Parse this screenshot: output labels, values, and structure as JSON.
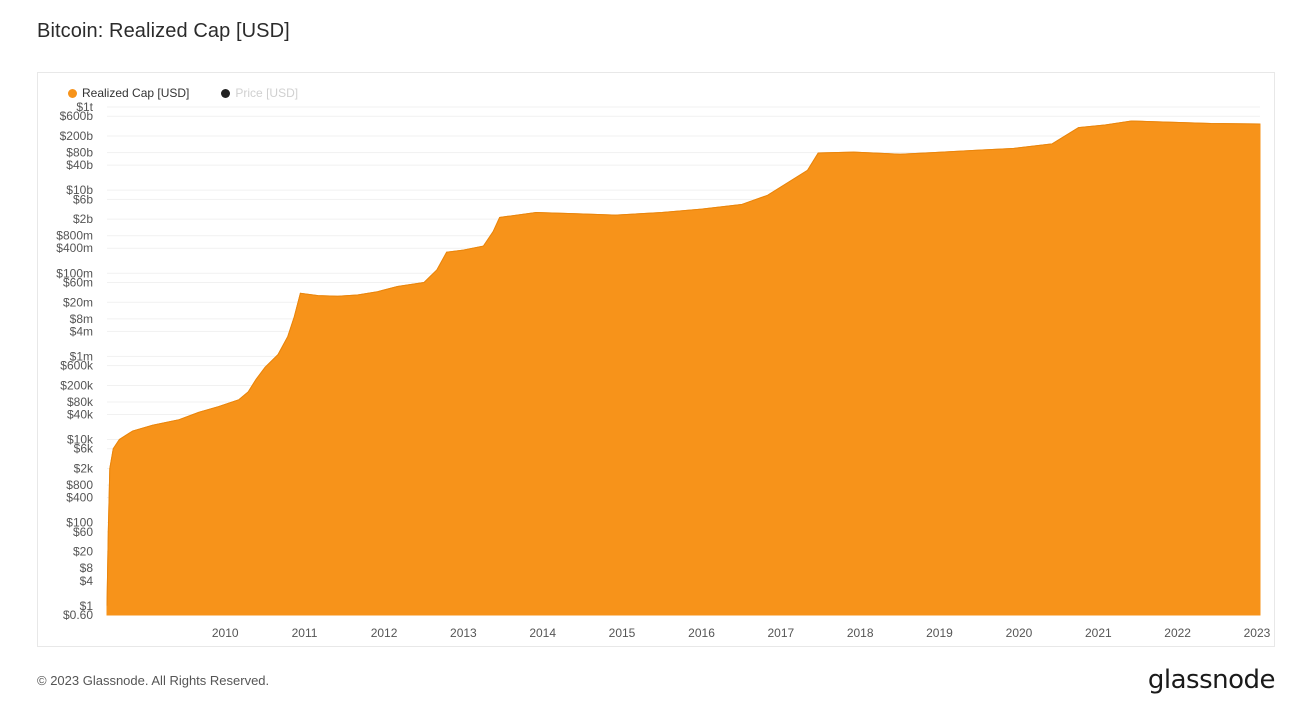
{
  "title": "Bitcoin: Realized Cap [USD]",
  "legend": [
    {
      "label": "Realized Cap [USD]",
      "color": "#F7931A",
      "active": true
    },
    {
      "label": "Price [USD]",
      "color": "#222222",
      "active": false
    }
  ],
  "footer": {
    "copyright": "© 2023 Glassnode. All Rights Reserved.",
    "logo": "glassnode"
  },
  "chart_data": {
    "type": "area",
    "title": "Bitcoin: Realized Cap [USD]",
    "xlabel": "",
    "ylabel": "",
    "yscale": "log",
    "ylim": [
      0.6,
      1000000000000
    ],
    "xlim": [
      "2009-01-03",
      "2023-07-15"
    ],
    "grid": true,
    "legend_position": "top-left",
    "color": "#F7931A",
    "x_ticks": [
      "2010",
      "2011",
      "2012",
      "2013",
      "2014",
      "2015",
      "2016",
      "2017",
      "2018",
      "2019",
      "2020",
      "2021",
      "2022",
      "2023"
    ],
    "y_ticks": [
      {
        "label": "$1t",
        "value": 1000000000000
      },
      {
        "label": "$600b",
        "value": 600000000000
      },
      {
        "label": "$200b",
        "value": 200000000000
      },
      {
        "label": "$80b",
        "value": 80000000000
      },
      {
        "label": "$40b",
        "value": 40000000000
      },
      {
        "label": "$10b",
        "value": 10000000000
      },
      {
        "label": "$6b",
        "value": 6000000000
      },
      {
        "label": "$2b",
        "value": 2000000000
      },
      {
        "label": "$800m",
        "value": 800000000
      },
      {
        "label": "$400m",
        "value": 400000000
      },
      {
        "label": "$100m",
        "value": 100000000
      },
      {
        "label": "$60m",
        "value": 60000000
      },
      {
        "label": "$20m",
        "value": 20000000
      },
      {
        "label": "$8m",
        "value": 8000000
      },
      {
        "label": "$4m",
        "value": 4000000
      },
      {
        "label": "$1m",
        "value": 1000000
      },
      {
        "label": "$600k",
        "value": 600000
      },
      {
        "label": "$200k",
        "value": 200000
      },
      {
        "label": "$80k",
        "value": 80000
      },
      {
        "label": "$40k",
        "value": 40000
      },
      {
        "label": "$10k",
        "value": 10000
      },
      {
        "label": "$6k",
        "value": 6000
      },
      {
        "label": "$2k",
        "value": 2000
      },
      {
        "label": "$800",
        "value": 800
      },
      {
        "label": "$400",
        "value": 400
      },
      {
        "label": "$100",
        "value": 100
      },
      {
        "label": "$60",
        "value": 60
      },
      {
        "label": "$20",
        "value": 20
      },
      {
        "label": "$8",
        "value": 8
      },
      {
        "label": "$4",
        "value": 4
      },
      {
        "label": "$1",
        "value": 1
      },
      {
        "label": "$0.60",
        "value": 0.6
      }
    ],
    "series": [
      {
        "name": "Realized Cap [USD]",
        "points": [
          [
            "2009-01-03",
            1
          ],
          [
            "2009-01-09",
            60
          ],
          [
            "2009-01-16",
            2000
          ],
          [
            "2009-02-01",
            6000
          ],
          [
            "2009-03-01",
            10000
          ],
          [
            "2009-05-01",
            16000
          ],
          [
            "2009-08-01",
            22000
          ],
          [
            "2009-12-01",
            30000
          ],
          [
            "2010-03-01",
            45000
          ],
          [
            "2010-06-01",
            62000
          ],
          [
            "2010-09-01",
            90000
          ],
          [
            "2010-10-15",
            140000
          ],
          [
            "2010-11-20",
            280000
          ],
          [
            "2011-01-01",
            550000
          ],
          [
            "2011-03-01",
            1100000
          ],
          [
            "2011-04-15",
            3000000
          ],
          [
            "2011-05-15",
            9000000
          ],
          [
            "2011-06-12",
            33000000
          ],
          [
            "2011-09-01",
            29000000
          ],
          [
            "2011-12-01",
            28000000
          ],
          [
            "2012-03-01",
            30000000
          ],
          [
            "2012-06-01",
            36000000
          ],
          [
            "2012-09-01",
            48000000
          ],
          [
            "2013-01-01",
            60000000
          ],
          [
            "2013-03-01",
            120000000
          ],
          [
            "2013-04-15",
            320000000
          ],
          [
            "2013-07-01",
            360000000
          ],
          [
            "2013-10-01",
            450000000
          ],
          [
            "2013-11-15",
            1000000000
          ],
          [
            "2013-12-15",
            2200000000
          ],
          [
            "2014-06-01",
            2900000000
          ],
          [
            "2014-12-01",
            2700000000
          ],
          [
            "2015-06-01",
            2500000000
          ],
          [
            "2016-01-01",
            2900000000
          ],
          [
            "2016-07-01",
            3500000000
          ],
          [
            "2017-01-01",
            4500000000
          ],
          [
            "2017-05-01",
            7500000000
          ],
          [
            "2017-08-01",
            15000000000
          ],
          [
            "2017-11-01",
            30000000000
          ],
          [
            "2017-12-20",
            78000000000
          ],
          [
            "2018-06-01",
            82000000000
          ],
          [
            "2019-01-01",
            73000000000
          ],
          [
            "2019-06-01",
            80000000000
          ],
          [
            "2020-01-01",
            92000000000
          ],
          [
            "2020-06-01",
            100000000000
          ],
          [
            "2020-12-01",
            130000000000
          ],
          [
            "2021-04-01",
            320000000000
          ],
          [
            "2021-08-01",
            370000000000
          ],
          [
            "2021-12-01",
            460000000000
          ],
          [
            "2022-06-01",
            430000000000
          ],
          [
            "2022-12-01",
            400000000000
          ],
          [
            "2023-07-15",
            390000000000
          ]
        ]
      }
    ]
  }
}
